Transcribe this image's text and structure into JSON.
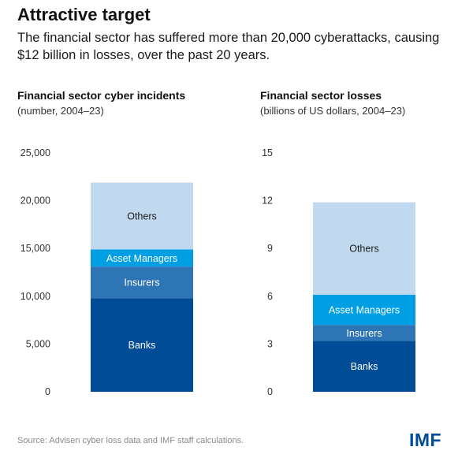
{
  "header": {
    "title": "Attractive target",
    "subtitle": "The financial sector has suffered more than 20,000 cyberattacks, causing $12 billion in losses, over the past 20 years."
  },
  "chart_data": [
    {
      "type": "bar",
      "stacked": true,
      "title": "Financial sector cyber incidents",
      "subtitle": "(number, 2004–23)",
      "ylim": [
        0,
        25000
      ],
      "yticks": [
        0,
        5000,
        10000,
        15000,
        20000,
        25000
      ],
      "ytick_labels": [
        "0",
        "5,000",
        "10,000",
        "15,000",
        "20,000",
        "25,000"
      ],
      "grid": false,
      "series": [
        {
          "name": "Banks",
          "value": 9800,
          "color": "#004c97",
          "label_color": "#ffffff"
        },
        {
          "name": "Insurers",
          "value": 3300,
          "color": "#2e75b6",
          "label_color": "#ffffff"
        },
        {
          "name": "Asset Managers",
          "value": 1800,
          "color": "#009fe3",
          "label_color": "#ffffff"
        },
        {
          "name": "Others",
          "value": 7000,
          "color": "#c0d9ee",
          "label_color": "#1a1a1a"
        }
      ]
    },
    {
      "type": "bar",
      "stacked": true,
      "title": "Financial sector losses",
      "subtitle": "(billions of US dollars, 2004–23)",
      "ylim": [
        0,
        15
      ],
      "yticks": [
        0,
        3,
        6,
        9,
        12,
        15
      ],
      "ytick_labels": [
        "0",
        "3",
        "6",
        "9",
        "12",
        "15"
      ],
      "grid": false,
      "series": [
        {
          "name": "Banks",
          "value": 3.2,
          "color": "#004c97",
          "label_color": "#ffffff"
        },
        {
          "name": "Insurers",
          "value": 1.0,
          "color": "#2e75b6",
          "label_color": "#ffffff"
        },
        {
          "name": "Asset Managers",
          "value": 1.9,
          "color": "#009fe3",
          "label_color": "#ffffff"
        },
        {
          "name": "Others",
          "value": 5.8,
          "color": "#c0d9ee",
          "label_color": "#1a1a1a"
        }
      ]
    }
  ],
  "footer": {
    "source": "Source: Advisen cyber loss data and IMF staff calculations.",
    "logo": "IMF"
  },
  "colors": {
    "banks": "#004c97",
    "insurers": "#2e75b6",
    "asset_managers": "#009fe3",
    "others": "#c0d9ee",
    "brand": "#004c97"
  }
}
